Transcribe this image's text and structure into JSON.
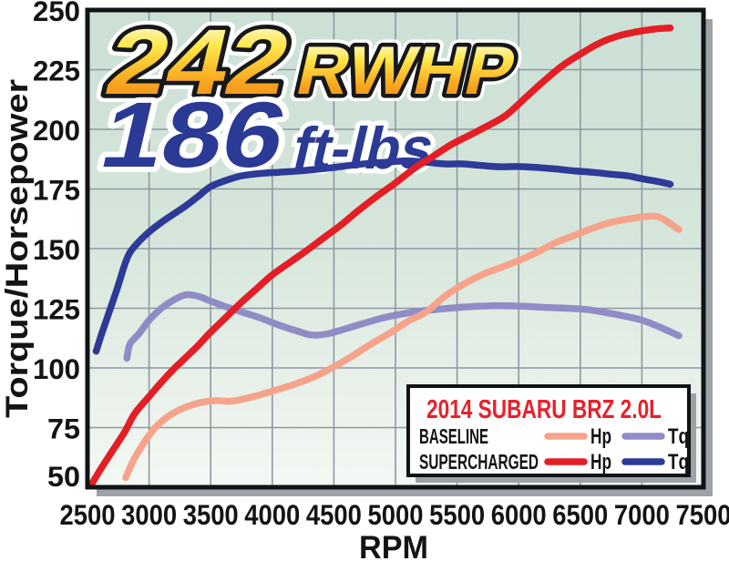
{
  "chart_data": {
    "type": "line",
    "xlabel": "RPM",
    "ylabel": "Torque/Horsepower",
    "xlim": [
      2500,
      7500
    ],
    "ylim": [
      50,
      250
    ],
    "x_ticks": [
      2500,
      3000,
      3500,
      4000,
      4500,
      5000,
      5500,
      6000,
      6500,
      7000,
      7500
    ],
    "y_ticks": [
      250,
      225,
      200,
      175,
      150,
      125,
      100,
      75,
      50
    ],
    "grid": true,
    "legend_position": "bottom-right",
    "annotations": [
      {
        "value": "242",
        "suffix": "RWHP",
        "style": "gold"
      },
      {
        "value": "186",
        "suffix": "ft-lbs",
        "style": "blue"
      }
    ],
    "series": [
      {
        "name": "baseline-tq",
        "legend": "Tq",
        "group": "BASELINE",
        "color": "#8F8CC6",
        "points": [
          [
            2820,
            104
          ],
          [
            2845,
            110
          ],
          [
            2920,
            114.5
          ],
          [
            3000,
            120
          ],
          [
            3100,
            125
          ],
          [
            3200,
            128.5
          ],
          [
            3300,
            130.7
          ],
          [
            3400,
            130
          ],
          [
            3500,
            128
          ],
          [
            3620,
            125.7
          ],
          [
            3750,
            123.5
          ],
          [
            3900,
            121
          ],
          [
            4050,
            118
          ],
          [
            4200,
            115.5
          ],
          [
            4320,
            113.8
          ],
          [
            4450,
            114.3
          ],
          [
            4600,
            116.5
          ],
          [
            4750,
            118.8
          ],
          [
            4900,
            121
          ],
          [
            5050,
            122.6
          ],
          [
            5200,
            123.8
          ],
          [
            5350,
            124.6
          ],
          [
            5500,
            125.3
          ],
          [
            5650,
            125.8
          ],
          [
            5800,
            126.1
          ],
          [
            5950,
            126
          ],
          [
            6100,
            125.7
          ],
          [
            6250,
            125.3
          ],
          [
            6400,
            125
          ],
          [
            6550,
            124.5
          ],
          [
            6700,
            123.3
          ],
          [
            6850,
            121.8
          ],
          [
            7000,
            120
          ],
          [
            7150,
            117
          ],
          [
            7300,
            113.5
          ]
        ]
      },
      {
        "name": "baseline-hp",
        "legend": "Hp",
        "group": "BASELINE",
        "color": "#F6A38B",
        "points": [
          [
            2810,
            54
          ],
          [
            2870,
            61
          ],
          [
            2950,
            68
          ],
          [
            3050,
            75
          ],
          [
            3150,
            79.5
          ],
          [
            3250,
            82.5
          ],
          [
            3350,
            84.5
          ],
          [
            3450,
            85.8
          ],
          [
            3550,
            86.3
          ],
          [
            3650,
            86
          ],
          [
            3750,
            86.8
          ],
          [
            3850,
            88
          ],
          [
            3950,
            89.5
          ],
          [
            4080,
            91.5
          ],
          [
            4200,
            93.5
          ],
          [
            4350,
            96.5
          ],
          [
            4500,
            100.5
          ],
          [
            4650,
            105
          ],
          [
            4800,
            110
          ],
          [
            4950,
            114.5
          ],
          [
            5100,
            119.5
          ],
          [
            5250,
            123.5
          ],
          [
            5400,
            130
          ],
          [
            5550,
            135
          ],
          [
            5700,
            139
          ],
          [
            5850,
            142
          ],
          [
            6000,
            145
          ],
          [
            6150,
            148.5
          ],
          [
            6300,
            152.5
          ],
          [
            6450,
            155.5
          ],
          [
            6600,
            158.5
          ],
          [
            6750,
            161
          ],
          [
            6900,
            162.5
          ],
          [
            7050,
            163.5
          ],
          [
            7150,
            163
          ],
          [
            7300,
            158
          ]
        ]
      },
      {
        "name": "supercharged-tq",
        "legend": "Tq",
        "group": "SUPERCHARGED",
        "color": "#2E3A97",
        "points": [
          [
            2570,
            107
          ],
          [
            2620,
            115
          ],
          [
            2680,
            124
          ],
          [
            2740,
            133
          ],
          [
            2800,
            143
          ],
          [
            2840,
            148
          ],
          [
            2900,
            152
          ],
          [
            3000,
            157
          ],
          [
            3100,
            161
          ],
          [
            3200,
            164.5
          ],
          [
            3300,
            168
          ],
          [
            3400,
            172
          ],
          [
            3500,
            176
          ],
          [
            3620,
            178.5
          ],
          [
            3750,
            180.5
          ],
          [
            3900,
            181.5
          ],
          [
            4050,
            182
          ],
          [
            4200,
            182.5
          ],
          [
            4350,
            183.2
          ],
          [
            4500,
            184
          ],
          [
            4650,
            185
          ],
          [
            4800,
            185.8
          ],
          [
            4950,
            186.3
          ],
          [
            5100,
            186.8
          ],
          [
            5250,
            186.2
          ],
          [
            5400,
            185.5
          ],
          [
            5550,
            185.5
          ],
          [
            5700,
            184.8
          ],
          [
            5850,
            184.3
          ],
          [
            6000,
            184.4
          ],
          [
            6150,
            184
          ],
          [
            6300,
            183.4
          ],
          [
            6450,
            182.6
          ],
          [
            6600,
            182
          ],
          [
            6750,
            181.2
          ],
          [
            6900,
            180.4
          ],
          [
            7000,
            179.3
          ],
          [
            7100,
            178.4
          ],
          [
            7230,
            177
          ]
        ]
      },
      {
        "name": "supercharged-hp",
        "legend": "Hp",
        "group": "SUPERCHARGED",
        "color": "#E31E25",
        "points": [
          [
            2520,
            50
          ],
          [
            2600,
            57
          ],
          [
            2700,
            65
          ],
          [
            2800,
            73
          ],
          [
            2885,
            81
          ],
          [
            3000,
            88
          ],
          [
            3100,
            94
          ],
          [
            3200,
            99.5
          ],
          [
            3300,
            104.5
          ],
          [
            3400,
            109.5
          ],
          [
            3500,
            115
          ],
          [
            3620,
            121
          ],
          [
            3750,
            127.5
          ],
          [
            3880,
            133.5
          ],
          [
            4000,
            139
          ],
          [
            4150,
            144.5
          ],
          [
            4300,
            150
          ],
          [
            4430,
            155
          ],
          [
            4560,
            160
          ],
          [
            4700,
            166
          ],
          [
            4850,
            172
          ],
          [
            5000,
            177.5
          ],
          [
            5150,
            183.5
          ],
          [
            5300,
            188.5
          ],
          [
            5450,
            193.5
          ],
          [
            5600,
            197.5
          ],
          [
            5750,
            201.5
          ],
          [
            5900,
            206
          ],
          [
            6050,
            213
          ],
          [
            6200,
            220
          ],
          [
            6350,
            226.5
          ],
          [
            6500,
            231.5
          ],
          [
            6650,
            236
          ],
          [
            6800,
            239
          ],
          [
            6950,
            240.8
          ],
          [
            7100,
            242
          ],
          [
            7230,
            242.5
          ]
        ]
      }
    ]
  },
  "legend": {
    "title": "2014 SUBARU BRZ 2.0L",
    "title_color": "#E8212B",
    "rows": [
      {
        "label": "BASELINE",
        "entries": [
          {
            "label": "Hp",
            "color": "#F6A38B"
          },
          {
            "label": "Tq",
            "color": "#8F8CC6"
          }
        ]
      },
      {
        "label": "SUPERCHARGED",
        "entries": [
          {
            "label": "Hp",
            "color": "#E31E25"
          },
          {
            "label": "Tq",
            "color": "#2E3A97"
          }
        ]
      }
    ]
  },
  "colors": {
    "annotation_gold_top": "#FDFAD8",
    "annotation_gold_mid": "#FFE649",
    "annotation_gold_bottom": "#F2901C",
    "annotation_blue": "#2B3A94",
    "plot_bg_top": "#CCE0D6",
    "plot_bg_bottom": "#F4F8F4",
    "grid_line": "#8E98A1",
    "plot_border": "#101316",
    "drop_shadow": "#9CA2A7",
    "tick_text": "#141414"
  }
}
